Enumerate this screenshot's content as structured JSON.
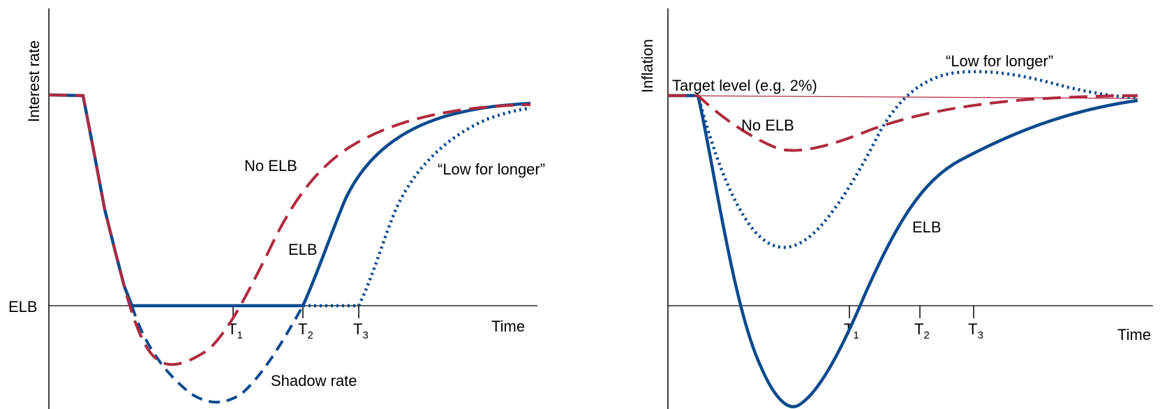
{
  "chart_data": [
    {
      "type": "line",
      "title": "",
      "ylabel": "Interest rate",
      "xlabel": "Time",
      "y_reference_label": "ELB",
      "ticks": [
        {
          "main": "T",
          "sub": "1"
        },
        {
          "main": "T",
          "sub": "2"
        },
        {
          "main": "T",
          "sub": "3"
        }
      ],
      "series": [
        {
          "label": "No ELB",
          "style": "dashed",
          "color": "#B02A3E"
        },
        {
          "label": "ELB",
          "style": "solid",
          "color": "#0B4A8E"
        },
        {
          "label": "“Low for longer”",
          "style": "dotted",
          "color": "#0B4A8E"
        },
        {
          "label": "Shadow rate",
          "style": "dashed",
          "color": "#0B4A8E"
        }
      ]
    },
    {
      "type": "line",
      "title": "",
      "ylabel": "Inflation",
      "xlabel": "Time",
      "target_label": "Target level (e.g. 2%)",
      "target_color": "#B02A3E",
      "ticks": [
        {
          "main": "T",
          "sub": "1"
        },
        {
          "main": "T",
          "sub": "2"
        },
        {
          "main": "T",
          "sub": "3"
        }
      ],
      "series": [
        {
          "label": "“Low for longer”",
          "style": "dotted",
          "color": "#0B4A8E"
        },
        {
          "label": "No ELB",
          "style": "dashed",
          "color": "#B02A3E"
        },
        {
          "label": "ELB",
          "style": "solid",
          "color": "#0B4A8E"
        }
      ]
    }
  ]
}
